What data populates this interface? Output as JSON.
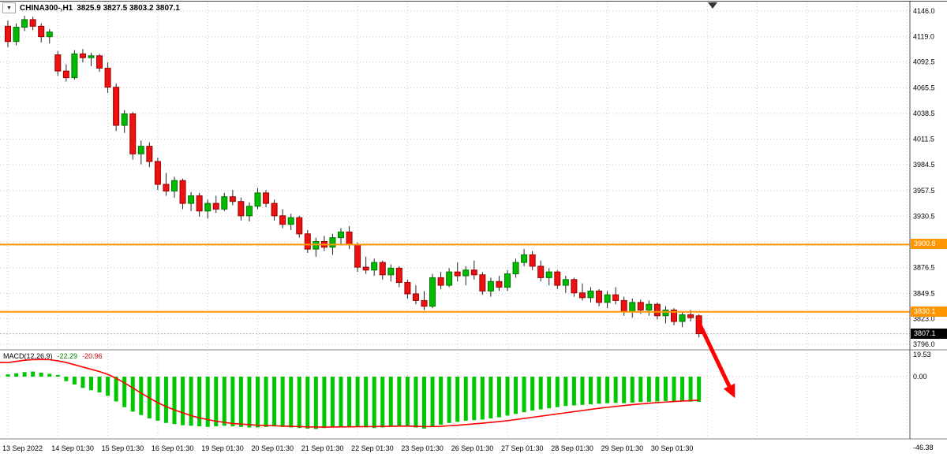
{
  "header": {
    "dropdown_icon": "▼",
    "symbol_label": "CHINA300-,H1",
    "ohlc_label": "3825.9 3827.5 3803.2 3807.1"
  },
  "macd_panel": {
    "label": "MACD(12,26,9)",
    "value_main": "-22.29",
    "value_signal": "-20.96",
    "axis_max_label": "19.53",
    "axis_zero_label": "0.00",
    "axis_min_label": "-46.38"
  },
  "hlines": [
    {
      "price": 3900.8,
      "label": "3900.8"
    },
    {
      "price": 3830.1,
      "label": "3830.1"
    }
  ],
  "current_price": {
    "price": 3807.1,
    "label": "3807.1"
  },
  "colors": {
    "background": "#FFFFFF",
    "grid": "#C9C9C9",
    "up": "#00BB00",
    "up_border": "#007700",
    "down": "#EE1111",
    "down_border": "#990000",
    "wick": "#222222",
    "hline": "#FF9500",
    "histogram": "#00C800",
    "signal": "#FF0000",
    "arrow": "#FF0000",
    "separator": "#808080",
    "axis_border": "#555555"
  },
  "chart_data": {
    "type": "candlestick",
    "symbol": "CHINA300-",
    "timeframe": "H1",
    "title": "CHINA300-,H1 3825.9 3827.5 3803.2 3807.1",
    "last_bar": {
      "open": 3825.9,
      "high": 3827.5,
      "low": 3803.2,
      "close": 3807.1
    },
    "price_ticks": [
      4146.0,
      4119.0,
      4092.5,
      4065.5,
      4038.5,
      4011.5,
      3984.5,
      3957.5,
      3930.5,
      3903.5,
      3876.5,
      3849.5,
      3823.0,
      3796.0
    ],
    "horizontal_lines": [
      3900.8,
      3830.1
    ],
    "current_price": 3807.1,
    "x_labels": [
      "13 Sep 2022",
      "14 Sep 01:30",
      "15 Sep 01:30",
      "16 Sep 01:30",
      "19 Sep 01:30",
      "20 Sep 01:30",
      "21 Sep 01:30",
      "22 Sep 01:30",
      "23 Sep 01:30",
      "26 Sep 01:30",
      "27 Sep 01:30",
      "28 Sep 01:30",
      "29 Sep 01:30",
      "30 Sep 01:30"
    ],
    "bars_per_label": 6,
    "ohlc": [
      [
        4130,
        4136,
        4108,
        4114
      ],
      [
        4114,
        4133,
        4110,
        4129
      ],
      [
        4129,
        4141,
        4125,
        4137
      ],
      [
        4137,
        4140,
        4126,
        4130
      ],
      [
        4130,
        4133,
        4113,
        4119
      ],
      [
        4119,
        4127,
        4112,
        4124
      ],
      [
        4100,
        4104,
        4078,
        4083
      ],
      [
        4083,
        4090,
        4072,
        4076
      ],
      [
        4076,
        4105,
        4074,
        4101
      ],
      [
        4101,
        4106,
        4092,
        4097
      ],
      [
        4097,
        4102,
        4088,
        4099
      ],
      [
        4099,
        4101,
        4082,
        4086
      ],
      [
        4086,
        4092,
        4060,
        4066
      ],
      [
        4066,
        4070,
        4020,
        4026
      ],
      [
        4026,
        4042,
        4018,
        4038
      ],
      [
        4038,
        4040,
        3990,
        3996
      ],
      [
        3996,
        4010,
        3985,
        4004
      ],
      [
        4004,
        4008,
        3982,
        3988
      ],
      [
        3988,
        3992,
        3958,
        3964
      ],
      [
        3964,
        3976,
        3952,
        3957
      ],
      [
        3957,
        3972,
        3950,
        3968
      ],
      [
        3968,
        3970,
        3938,
        3944
      ],
      [
        3944,
        3956,
        3936,
        3952
      ],
      [
        3952,
        3955,
        3930,
        3936
      ],
      [
        3936,
        3948,
        3928,
        3944
      ],
      [
        3944,
        3952,
        3934,
        3938
      ],
      [
        3938,
        3955,
        3936,
        3951
      ],
      [
        3951,
        3958,
        3942,
        3946
      ],
      [
        3946,
        3950,
        3926,
        3931
      ],
      [
        3931,
        3945,
        3925,
        3941
      ],
      [
        3941,
        3960,
        3938,
        3955
      ],
      [
        3955,
        3958,
        3940,
        3944
      ],
      [
        3944,
        3948,
        3926,
        3931
      ],
      [
        3931,
        3938,
        3918,
        3922
      ],
      [
        3922,
        3933,
        3916,
        3929
      ],
      [
        3929,
        3931,
        3908,
        3912
      ],
      [
        3912,
        3916,
        3892,
        3896
      ],
      [
        3896,
        3908,
        3888,
        3904
      ],
      [
        3904,
        3910,
        3894,
        3898
      ],
      [
        3898,
        3912,
        3890,
        3908
      ],
      [
        3908,
        3918,
        3900,
        3914
      ],
      [
        3914,
        3920,
        3896,
        3901
      ],
      [
        3901,
        3903,
        3872,
        3877
      ],
      [
        3877,
        3888,
        3870,
        3874
      ],
      [
        3874,
        3886,
        3868,
        3882
      ],
      [
        3882,
        3884,
        3864,
        3869
      ],
      [
        3869,
        3880,
        3862,
        3876
      ],
      [
        3876,
        3878,
        3856,
        3861
      ],
      [
        3861,
        3864,
        3844,
        3849
      ],
      [
        3849,
        3858,
        3838,
        3842
      ],
      [
        3842,
        3852,
        3832,
        3836
      ],
      [
        3836,
        3870,
        3834,
        3866
      ],
      [
        3866,
        3872,
        3854,
        3858
      ],
      [
        3858,
        3876,
        3856,
        3872
      ],
      [
        3872,
        3882,
        3862,
        3868
      ],
      [
        3868,
        3878,
        3858,
        3874
      ],
      [
        3874,
        3884,
        3864,
        3869
      ],
      [
        3869,
        3872,
        3848,
        3852
      ],
      [
        3852,
        3866,
        3846,
        3862
      ],
      [
        3862,
        3868,
        3852,
        3856
      ],
      [
        3856,
        3874,
        3852,
        3870
      ],
      [
        3870,
        3886,
        3866,
        3882
      ],
      [
        3882,
        3896,
        3878,
        3890
      ],
      [
        3890,
        3894,
        3874,
        3878
      ],
      [
        3878,
        3884,
        3862,
        3866
      ],
      [
        3866,
        3876,
        3858,
        3872
      ],
      [
        3872,
        3874,
        3854,
        3858
      ],
      [
        3858,
        3868,
        3850,
        3864
      ],
      [
        3864,
        3866,
        3846,
        3850
      ],
      [
        3850,
        3860,
        3842,
        3845
      ],
      [
        3845,
        3856,
        3840,
        3852
      ],
      [
        3852,
        3854,
        3836,
        3840
      ],
      [
        3840,
        3852,
        3834,
        3848
      ],
      [
        3848,
        3856,
        3838,
        3842
      ],
      [
        3842,
        3846,
        3826,
        3830
      ],
      [
        3830,
        3844,
        3824,
        3840
      ],
      [
        3840,
        3843,
        3828,
        3832
      ],
      [
        3832,
        3842,
        3826,
        3838
      ],
      [
        3838,
        3840,
        3822,
        3826
      ],
      [
        3826,
        3836,
        3818,
        3832
      ],
      [
        3832,
        3834,
        3816,
        3820
      ],
      [
        3820,
        3830,
        3814,
        3827
      ],
      [
        3827,
        3832,
        3820,
        3824
      ],
      [
        3825.9,
        3827.5,
        3803.2,
        3807.1
      ]
    ],
    "indicator": {
      "name": "MACD",
      "params": [
        12,
        26,
        9
      ],
      "macd_last": -22.29,
      "signal_last": -20.96,
      "scale": {
        "max": 19.53,
        "zero": 0.0,
        "min": -46.38
      },
      "histogram": [
        2,
        3,
        4,
        4.5,
        3.5,
        2.5,
        1.5,
        -4,
        -7,
        -10,
        -12,
        -14,
        -17,
        -22,
        -27,
        -31,
        -34,
        -37,
        -39,
        -41,
        -42,
        -43,
        -43.5,
        -44,
        -44.5,
        -44,
        -43.5,
        -44,
        -44.5,
        -45,
        -45,
        -44.5,
        -44,
        -44.5,
        -45,
        -45.5,
        -46,
        -46.4,
        -45.5,
        -45,
        -44.5,
        -44,
        -44.5,
        -45,
        -45.5,
        -45,
        -44,
        -43.5,
        -44,
        -45,
        -46,
        -44.5,
        -42.5,
        -41,
        -40,
        -39,
        -38.5,
        -38,
        -37,
        -36,
        -34.5,
        -33,
        -31.5,
        -30,
        -29,
        -28,
        -27,
        -26,
        -25.5,
        -25,
        -24.5,
        -24,
        -23.5,
        -23.2,
        -23.5,
        -23,
        -22.5,
        -22.3,
        -22,
        -21.6,
        -21.8,
        -22,
        -22.1,
        -22.29
      ],
      "signal": [
        12.5,
        13.5,
        14.5,
        15,
        15.2,
        15,
        14,
        12.5,
        10.5,
        8.5,
        6.5,
        4.5,
        2,
        -1.5,
        -5.5,
        -10,
        -14.5,
        -19,
        -23,
        -26.5,
        -29.5,
        -32,
        -34.5,
        -36.5,
        -38,
        -39.5,
        -40.5,
        -41.5,
        -42,
        -42.5,
        -43,
        -43.2,
        -43.5,
        -43.8,
        -44,
        -44.2,
        -44.5,
        -44.6,
        -44.7,
        -44.6,
        -44.5,
        -44.4,
        -44.3,
        -44.2,
        -44.2,
        -44.1,
        -44,
        -43.8,
        -43.8,
        -44,
        -44.2,
        -44.2,
        -44,
        -43.5,
        -43,
        -42.4,
        -41.8,
        -41.2,
        -40.5,
        -39.8,
        -39,
        -38,
        -37,
        -36,
        -35,
        -34,
        -33,
        -32,
        -31,
        -30,
        -29,
        -28,
        -27.2,
        -26.4,
        -25.6,
        -24.8,
        -24.2,
        -23.6,
        -23,
        -22.5,
        -22,
        -21.6,
        -21.2,
        -20.96
      ]
    }
  }
}
